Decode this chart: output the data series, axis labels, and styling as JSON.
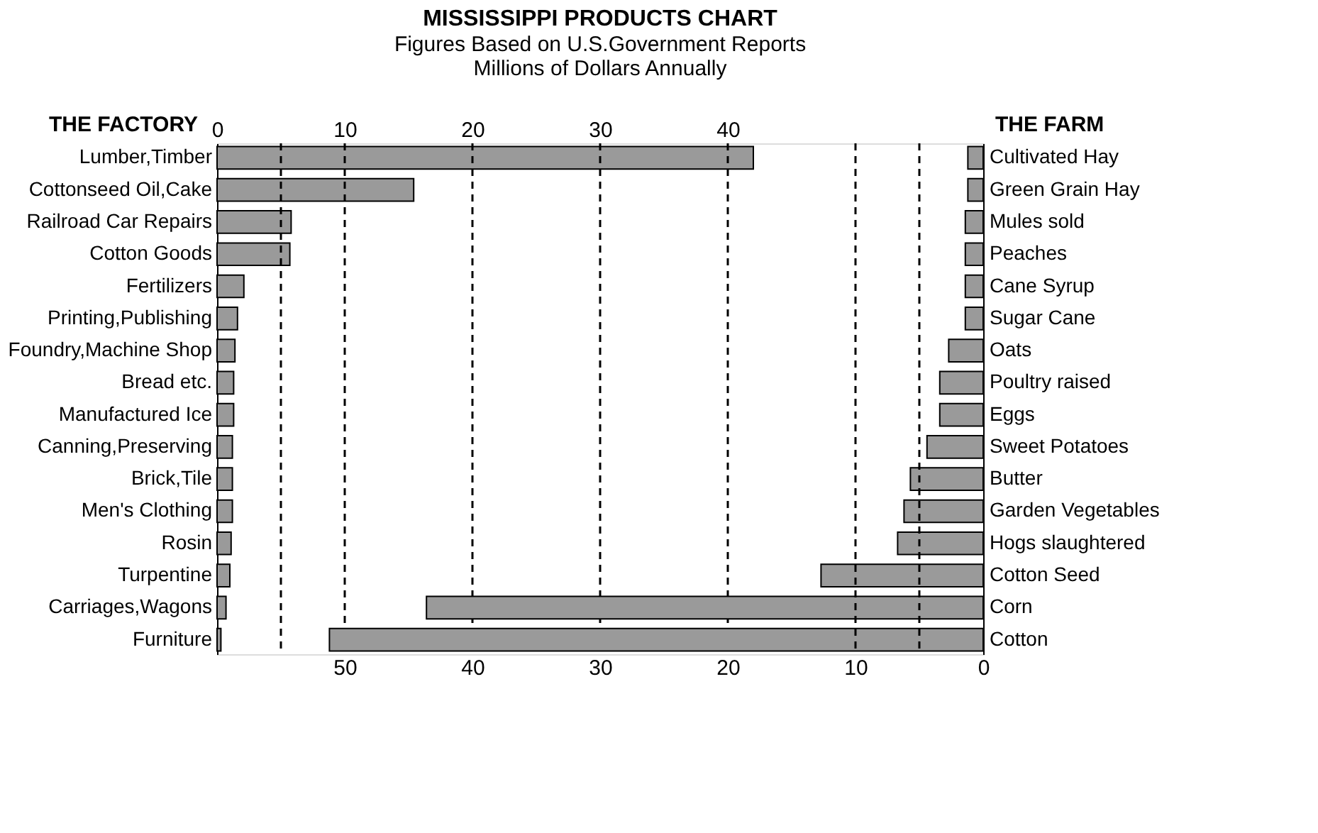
{
  "chart_data": [
    {
      "type": "bar",
      "orientation": "horizontal",
      "title": "MISSISSIPPI PRODUCTS CHART",
      "subtitle": [
        "Figures Based on U.S.Government Reports",
        "Millions of Dollars Annually"
      ],
      "ylabel": "THE FACTORY",
      "categories": [
        "Lumber,Timber",
        "Cottonseed Oil,Cake",
        "Railroad Car Repairs",
        "Cotton Goods",
        "Fertilizers",
        "Printing,Publishing",
        "Foundry,Machine Shop",
        "Bread etc.",
        "Manufactured Ice",
        "Canning,Preserving",
        "Brick,Tile",
        "Men's Clothing",
        "Rosin",
        "Turpentine",
        "Carriages,Wagons",
        "Furniture"
      ],
      "values": [
        42.0,
        15.4,
        5.8,
        5.7,
        2.1,
        1.6,
        1.4,
        1.3,
        1.3,
        1.2,
        1.2,
        1.2,
        1.1,
        1.0,
        0.7,
        0.3
      ],
      "color": "#9a9a9a",
      "xlim": [
        0,
        60
      ],
      "xticks": [
        0,
        10,
        20,
        30,
        40
      ],
      "grid": false,
      "ref_lines": [
        {
          "axis": "x",
          "value": 5,
          "line_style": "dashed"
        },
        {
          "axis": "x",
          "value": 10,
          "line_style": "dashed"
        },
        {
          "axis": "x",
          "value": 20,
          "line_style": "dashed"
        },
        {
          "axis": "x",
          "value": 30,
          "line_style": "dashed"
        },
        {
          "axis": "x",
          "value": 40,
          "line_style": "dashed"
        }
      ]
    },
    {
      "type": "bar",
      "orientation": "horizontal",
      "ylabel": "THE FARM",
      "categories": [
        "Cultivated Hay",
        "Green Grain Hay",
        "Mules sold",
        "Peaches",
        "Cane Syrup",
        "Sugar Cane",
        "Oats",
        "Poultry raised",
        "Eggs",
        "Sweet Potatoes",
        "Butter",
        "Garden Vegetables",
        "Hogs slaughtered",
        "Cotton Seed",
        "Corn",
        "Cotton"
      ],
      "values": [
        1.2,
        1.2,
        1.4,
        1.4,
        1.4,
        1.4,
        2.7,
        3.4,
        3.4,
        4.4,
        5.7,
        6.2,
        6.7,
        12.7,
        43.6,
        51.2
      ],
      "color": "#9a9a9a",
      "xlim": [
        60,
        0
      ],
      "xticks": [
        50,
        40,
        30,
        20,
        10,
        0
      ],
      "grid": false,
      "ref_lines": [
        {
          "axis": "x",
          "value": 5,
          "line_style": "dashed"
        },
        {
          "axis": "x",
          "value": 10,
          "line_style": "dashed"
        }
      ]
    }
  ]
}
